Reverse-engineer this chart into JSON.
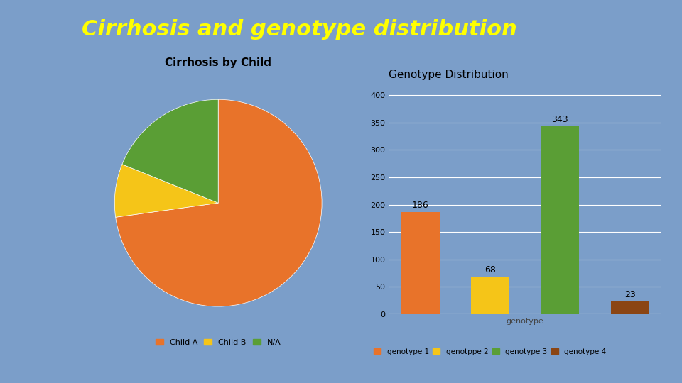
{
  "title": "Cirrhosis and genotype distribution",
  "title_color": "#FFFF00",
  "background_color": "#7B9EC9",
  "pie_title": "Cirrhosis by Child",
  "pie_labels": [
    "Child A",
    "Child B",
    "N/A"
  ],
  "pie_sizes": [
    597,
    68,
    155
  ],
  "pie_colors": [
    "#E8732A",
    "#F5C518",
    "#5A9E35"
  ],
  "pie_box_bg": "#FFFFFF",
  "pie_box_edge": "#8DB56A",
  "bar_title": "Genotype Distribution",
  "bar_categories": [
    "genotype 1",
    "genotppe 2",
    "genotype 3",
    "genotype 4"
  ],
  "bar_values": [
    186,
    68,
    343,
    23
  ],
  "bar_colors": [
    "#E8732A",
    "#F5C518",
    "#5A9E35",
    "#8B4513"
  ],
  "bar_xlabel": "genotype",
  "bar_ylim": [
    0,
    420
  ],
  "bar_yticks": [
    0,
    50,
    100,
    150,
    200,
    250,
    300,
    350,
    400
  ]
}
